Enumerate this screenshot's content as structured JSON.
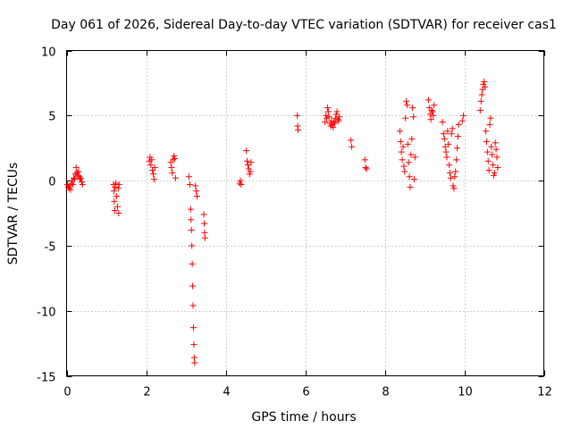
{
  "chart_data": {
    "type": "scatter",
    "title": "Day 061 of 2026, Sidereal Day-to-day VTEC variation (SDTVAR) for receiver cas1",
    "xlabel": "GPS time / hours",
    "ylabel": "SDTVAR / TECUs",
    "xlim": [
      0,
      12
    ],
    "ylim": [
      -15,
      10
    ],
    "xticks": [
      0,
      2,
      4,
      6,
      8,
      10,
      12
    ],
    "yticks": [
      -15,
      -10,
      -5,
      0,
      5,
      10
    ],
    "grid": true,
    "marker": "+",
    "series": [
      {
        "name": "SDTVAR",
        "color": "#ff0000",
        "points": [
          [
            0.02,
            -0.3
          ],
          [
            0.04,
            -0.5
          ],
          [
            0.06,
            -0.6
          ],
          [
            0.08,
            -0.4
          ],
          [
            0.1,
            -0.7
          ],
          [
            0.12,
            -0.2
          ],
          [
            0.14,
            0.0
          ],
          [
            0.16,
            -0.3
          ],
          [
            0.18,
            0.2
          ],
          [
            0.2,
            0.1
          ],
          [
            0.22,
            0.5
          ],
          [
            0.24,
            1.0
          ],
          [
            0.26,
            0.6
          ],
          [
            0.28,
            0.4
          ],
          [
            0.3,
            0.7
          ],
          [
            0.32,
            0.3
          ],
          [
            0.34,
            0.1
          ],
          [
            0.36,
            0.2
          ],
          [
            0.38,
            -0.1
          ],
          [
            0.4,
            -0.3
          ],
          [
            1.18,
            -0.3
          ],
          [
            1.19,
            -0.8
          ],
          [
            1.2,
            -1.6
          ],
          [
            1.21,
            -2.3
          ],
          [
            1.22,
            -0.5
          ],
          [
            1.24,
            -0.2
          ],
          [
            1.26,
            -1.2
          ],
          [
            1.28,
            -2.0
          ],
          [
            1.3,
            -0.6
          ],
          [
            1.31,
            -2.5
          ],
          [
            1.32,
            -0.3
          ],
          [
            2.08,
            1.5
          ],
          [
            2.1,
            1.8
          ],
          [
            2.12,
            1.2
          ],
          [
            2.14,
            1.6
          ],
          [
            2.16,
            0.8
          ],
          [
            2.18,
            0.5
          ],
          [
            2.2,
            0.1
          ],
          [
            2.22,
            1.0
          ],
          [
            2.62,
            1.4
          ],
          [
            2.64,
            1.0
          ],
          [
            2.66,
            0.6
          ],
          [
            2.68,
            1.6
          ],
          [
            2.7,
            1.9
          ],
          [
            2.72,
            1.7
          ],
          [
            2.74,
            0.2
          ],
          [
            3.08,
            0.3
          ],
          [
            3.1,
            -0.3
          ],
          [
            3.12,
            -2.2
          ],
          [
            3.13,
            -3.0
          ],
          [
            3.14,
            -3.8
          ],
          [
            3.15,
            -5.0
          ],
          [
            3.16,
            -6.4
          ],
          [
            3.17,
            -8.1
          ],
          [
            3.18,
            -9.6
          ],
          [
            3.19,
            -11.3
          ],
          [
            3.2,
            -12.6
          ],
          [
            3.21,
            -13.6
          ],
          [
            3.22,
            -14.0
          ],
          [
            3.24,
            -0.4
          ],
          [
            3.26,
            -0.8
          ],
          [
            3.28,
            -1.2
          ],
          [
            3.45,
            -2.6
          ],
          [
            3.46,
            -3.3
          ],
          [
            3.47,
            -4.0
          ],
          [
            3.48,
            -4.4
          ],
          [
            4.35,
            -0.2
          ],
          [
            4.37,
            0.0
          ],
          [
            4.39,
            -0.3
          ],
          [
            4.52,
            2.3
          ],
          [
            4.54,
            1.5
          ],
          [
            4.56,
            1.2
          ],
          [
            4.58,
            0.9
          ],
          [
            4.6,
            0.5
          ],
          [
            4.62,
            0.7
          ],
          [
            4.64,
            1.4
          ],
          [
            5.8,
            5.0
          ],
          [
            5.81,
            4.2
          ],
          [
            5.82,
            3.9
          ],
          [
            6.5,
            4.5
          ],
          [
            6.52,
            5.0
          ],
          [
            6.54,
            4.8
          ],
          [
            6.56,
            5.6
          ],
          [
            6.58,
            5.3
          ],
          [
            6.6,
            4.9
          ],
          [
            6.62,
            4.4
          ],
          [
            6.64,
            4.2
          ],
          [
            6.66,
            4.6
          ],
          [
            6.68,
            4.3
          ],
          [
            6.7,
            4.1
          ],
          [
            6.72,
            4.5
          ],
          [
            6.74,
            4.4
          ],
          [
            6.76,
            4.8
          ],
          [
            6.78,
            5.1
          ],
          [
            6.8,
            5.3
          ],
          [
            6.82,
            4.7
          ],
          [
            6.84,
            4.6
          ],
          [
            6.86,
            4.9
          ],
          [
            7.15,
            3.1
          ],
          [
            7.17,
            2.6
          ],
          [
            7.5,
            1.6
          ],
          [
            7.52,
            1.0
          ],
          [
            7.54,
            0.9
          ],
          [
            8.38,
            3.8
          ],
          [
            8.4,
            3.0
          ],
          [
            8.42,
            2.2
          ],
          [
            8.44,
            1.6
          ],
          [
            8.46,
            2.6
          ],
          [
            8.48,
            1.1
          ],
          [
            8.5,
            0.7
          ],
          [
            8.52,
            4.8
          ],
          [
            8.54,
            6.1
          ],
          [
            8.56,
            5.8
          ],
          [
            8.58,
            2.8
          ],
          [
            8.6,
            1.4
          ],
          [
            8.62,
            0.3
          ],
          [
            8.64,
            -0.5
          ],
          [
            8.66,
            2.0
          ],
          [
            8.68,
            3.2
          ],
          [
            8.7,
            5.6
          ],
          [
            8.72,
            4.9
          ],
          [
            8.74,
            0.1
          ],
          [
            8.76,
            1.8
          ],
          [
            9.1,
            6.2
          ],
          [
            9.12,
            5.6
          ],
          [
            9.14,
            5.1
          ],
          [
            9.16,
            4.7
          ],
          [
            9.18,
            5.4
          ],
          [
            9.2,
            5.3
          ],
          [
            9.22,
            5.0
          ],
          [
            9.24,
            5.8
          ],
          [
            9.45,
            4.5
          ],
          [
            9.48,
            3.6
          ],
          [
            9.5,
            3.2
          ],
          [
            9.52,
            2.6
          ],
          [
            9.54,
            2.2
          ],
          [
            9.56,
            1.8
          ],
          [
            9.58,
            3.8
          ],
          [
            9.6,
            2.8
          ],
          [
            9.62,
            1.2
          ],
          [
            9.64,
            0.6
          ],
          [
            9.66,
            0.2
          ],
          [
            9.68,
            3.6
          ],
          [
            9.7,
            4.0
          ],
          [
            9.72,
            -0.4
          ],
          [
            9.74,
            -0.6
          ],
          [
            9.76,
            0.3
          ],
          [
            9.78,
            0.7
          ],
          [
            9.8,
            1.6
          ],
          [
            9.82,
            2.5
          ],
          [
            9.84,
            3.4
          ],
          [
            9.86,
            4.3
          ],
          [
            9.95,
            4.6
          ],
          [
            9.98,
            5.0
          ],
          [
            10.4,
            5.4
          ],
          [
            10.42,
            6.1
          ],
          [
            10.44,
            6.6
          ],
          [
            10.46,
            7.0
          ],
          [
            10.48,
            7.4
          ],
          [
            10.5,
            7.6
          ],
          [
            10.52,
            7.2
          ],
          [
            10.54,
            3.8
          ],
          [
            10.56,
            3.0
          ],
          [
            10.58,
            2.2
          ],
          [
            10.6,
            1.5
          ],
          [
            10.62,
            0.8
          ],
          [
            10.64,
            4.3
          ],
          [
            10.66,
            4.8
          ],
          [
            10.68,
            2.6
          ],
          [
            10.7,
            2.0
          ],
          [
            10.72,
            1.2
          ],
          [
            10.74,
            0.4
          ],
          [
            10.76,
            0.6
          ],
          [
            10.78,
            2.9
          ],
          [
            10.8,
            2.4
          ],
          [
            10.82,
            1.8
          ],
          [
            10.84,
            1.0
          ]
        ]
      }
    ]
  }
}
